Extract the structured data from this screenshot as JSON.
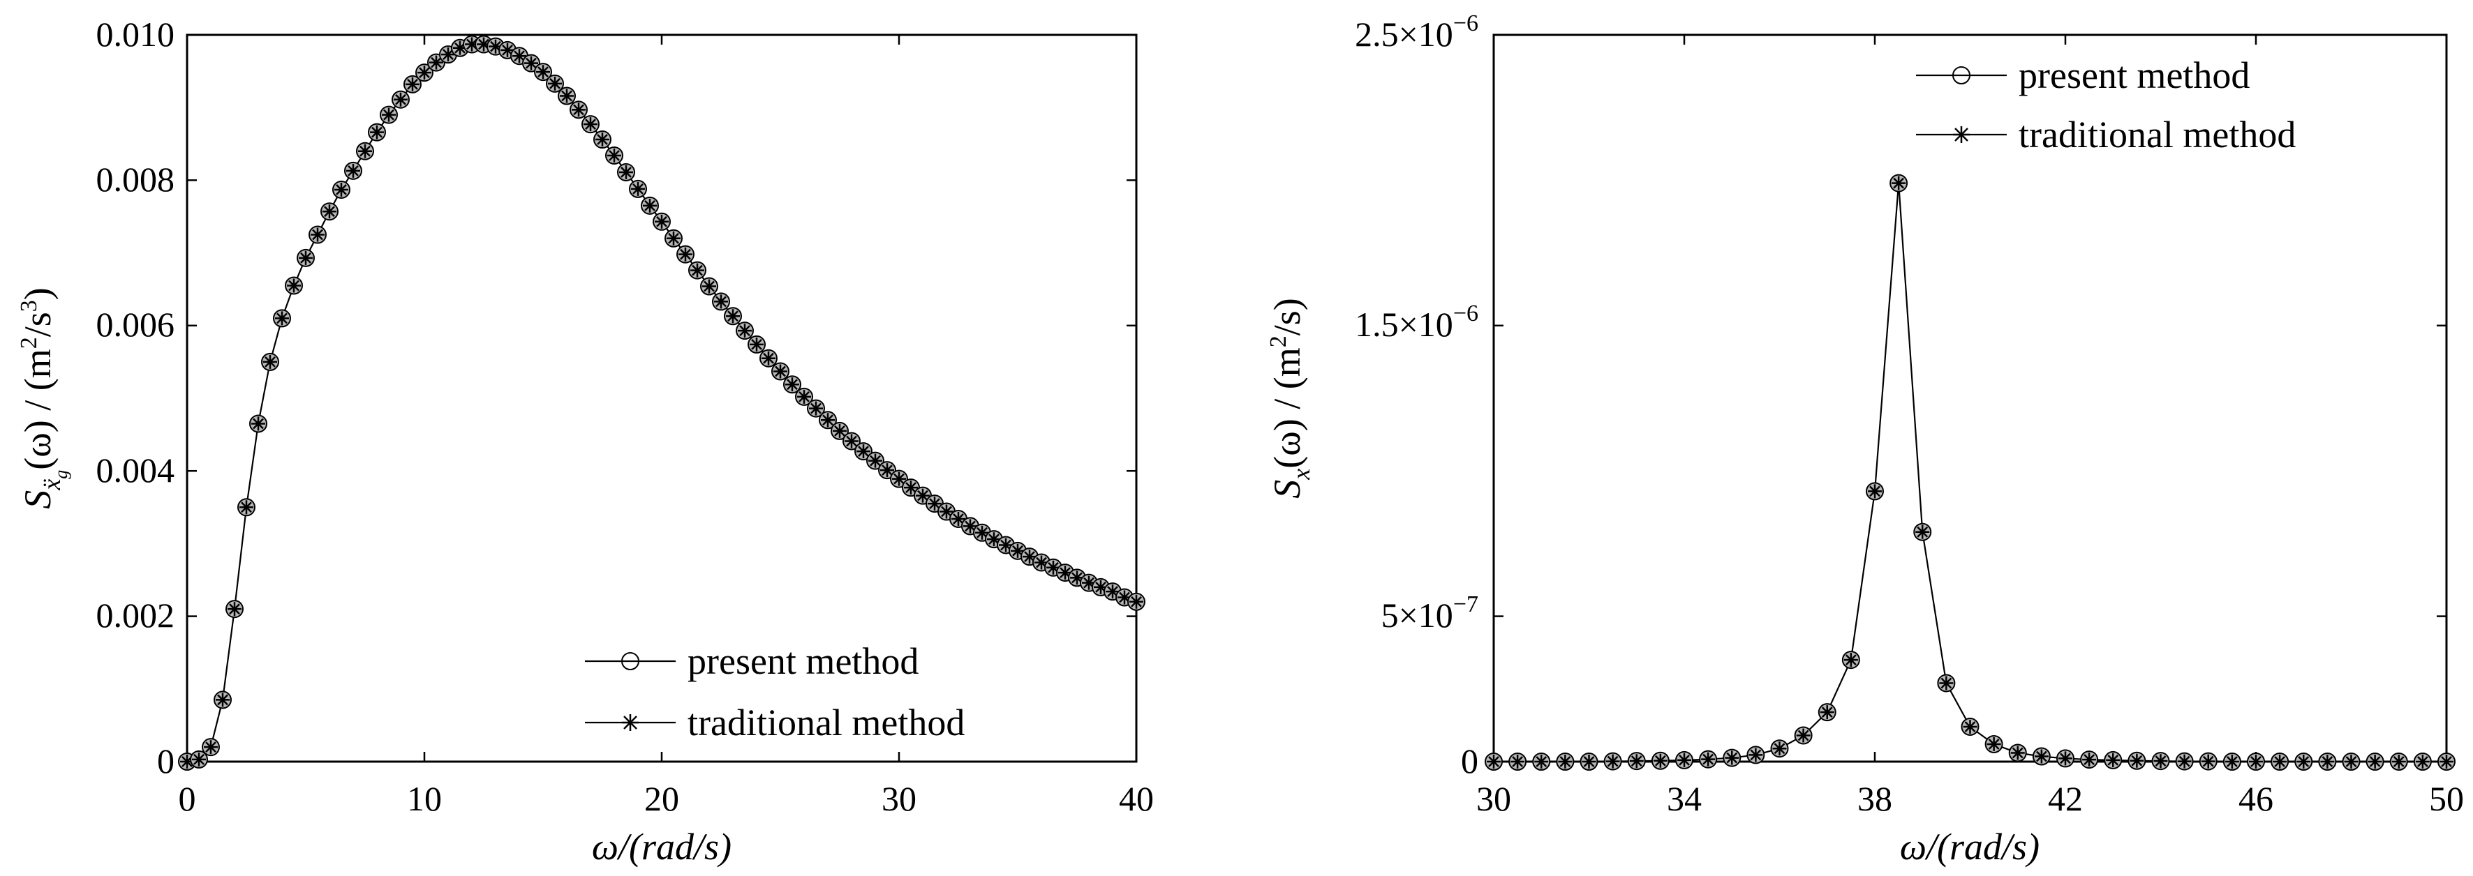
{
  "chart_data": [
    {
      "type": "line",
      "xlabel": "ω/(rad/s)",
      "ylabel_parts": [
        "S",
        "ẍ",
        "g",
        "(ω) / (m",
        "2",
        "/s",
        "3",
        ")"
      ],
      "xlim": [
        0,
        40
      ],
      "ylim": [
        0,
        0.01
      ],
      "xticks": [
        0,
        10,
        20,
        30,
        40
      ],
      "xtick_labels": [
        "0",
        "10",
        "20",
        "30",
        "40"
      ],
      "yticks": [
        0,
        0.002,
        0.004,
        0.006,
        0.008,
        0.01
      ],
      "ytick_labels": [
        "0",
        "0.002",
        "0.004",
        "0.006",
        "0.008",
        "0.010"
      ],
      "legend_position": "bottom-right",
      "series": [
        {
          "name": "present method",
          "marker": "circle"
        },
        {
          "name": "traditional method",
          "marker": "star"
        }
      ],
      "x": [
        0,
        0.5,
        1,
        1.5,
        2,
        2.5,
        3,
        3.5,
        4,
        4.5,
        5,
        5.5,
        6,
        6.5,
        7,
        7.5,
        8,
        8.5,
        9,
        9.5,
        10,
        10.5,
        11,
        11.5,
        12,
        12.5,
        13,
        13.5,
        14,
        14.5,
        15,
        15.5,
        16,
        16.5,
        17,
        17.5,
        18,
        18.5,
        19,
        19.5,
        20,
        20.5,
        21,
        21.5,
        22,
        22.5,
        23,
        23.5,
        24,
        24.5,
        25,
        25.5,
        26,
        26.5,
        27,
        27.5,
        28,
        28.5,
        29,
        29.5,
        30,
        30.5,
        31,
        31.5,
        32,
        32.5,
        33,
        33.5,
        34,
        34.5,
        35,
        35.5,
        36,
        36.5,
        37,
        37.5,
        38,
        38.5,
        39,
        39.5,
        40
      ],
      "y": [
        0,
        3e-05,
        0.0002,
        0.00085,
        0.0021,
        0.0035,
        0.00465,
        0.0055,
        0.0061,
        0.00655,
        0.00693,
        0.00725,
        0.00757,
        0.00787,
        0.00813,
        0.0084,
        0.00866,
        0.0089,
        0.00911,
        0.00932,
        0.00948,
        0.00962,
        0.00973,
        0.00982,
        0.00987,
        0.00987,
        0.00984,
        0.00979,
        0.00971,
        0.00961,
        0.00949,
        0.00933,
        0.00916,
        0.00897,
        0.00877,
        0.00856,
        0.00834,
        0.00811,
        0.00788,
        0.00765,
        0.00743,
        0.0072,
        0.00698,
        0.00676,
        0.00654,
        0.00633,
        0.00613,
        0.00593,
        0.00574,
        0.00555,
        0.00537,
        0.00519,
        0.00502,
        0.00486,
        0.0047,
        0.00455,
        0.00441,
        0.00427,
        0.00414,
        0.00401,
        0.00389,
        0.00377,
        0.00366,
        0.00355,
        0.00344,
        0.00334,
        0.00324,
        0.00315,
        0.00306,
        0.00298,
        0.0029,
        0.00282,
        0.00274,
        0.00267,
        0.0026,
        0.00253,
        0.00246,
        0.0024,
        0.00234,
        0.00226,
        0.0022
      ]
    },
    {
      "type": "line",
      "xlabel": "ω/(rad/s)",
      "ylabel_parts": [
        "S",
        "x",
        "(ω) / (m",
        "2",
        "/s)"
      ],
      "xlim": [
        30,
        50
      ],
      "ylim": [
        0,
        2.5e-06
      ],
      "xticks": [
        30,
        34,
        38,
        42,
        46,
        50
      ],
      "xtick_labels": [
        "30",
        "34",
        "38",
        "42",
        "46",
        "50"
      ],
      "yticks": [
        0,
        5e-07,
        1.5e-06,
        2.5e-06
      ],
      "ytick_labels": [
        [
          "0",
          ""
        ],
        [
          "5×10",
          "−7"
        ],
        [
          "1.5×10",
          "−6"
        ],
        [
          "2.5×10",
          "−6"
        ]
      ],
      "legend_position": "top-center",
      "series": [
        {
          "name": "present method",
          "marker": "circle"
        },
        {
          "name": "traditional method",
          "marker": "star"
        }
      ],
      "x": [
        30,
        30.5,
        31,
        31.5,
        32,
        32.5,
        33,
        33.5,
        34,
        34.5,
        35,
        35.5,
        36,
        36.5,
        37,
        37.5,
        38,
        38.5,
        39,
        39.5,
        40,
        40.5,
        41,
        41.5,
        42,
        42.5,
        43,
        43.5,
        44,
        44.5,
        45,
        45.5,
        46,
        46.5,
        47,
        47.5,
        48,
        48.5,
        49,
        49.5,
        50
      ],
      "y": [
        0,
        0,
        0,
        0,
        0,
        1e-09,
        2e-09,
        3e-09,
        5e-09,
        8e-09,
        1.3e-08,
        2.3e-08,
        4.5e-08,
        9e-08,
        1.7e-07,
        3.5e-07,
        9.3e-07,
        1.99e-06,
        7.9e-07,
        2.7e-07,
        1.2e-07,
        6e-08,
        3e-08,
        1.8e-08,
        1.1e-08,
        7e-09,
        5e-09,
        3e-09,
        2e-09,
        1e-09,
        1e-09,
        0,
        0,
        0,
        0,
        0,
        0,
        0,
        0,
        0,
        0
      ]
    }
  ]
}
